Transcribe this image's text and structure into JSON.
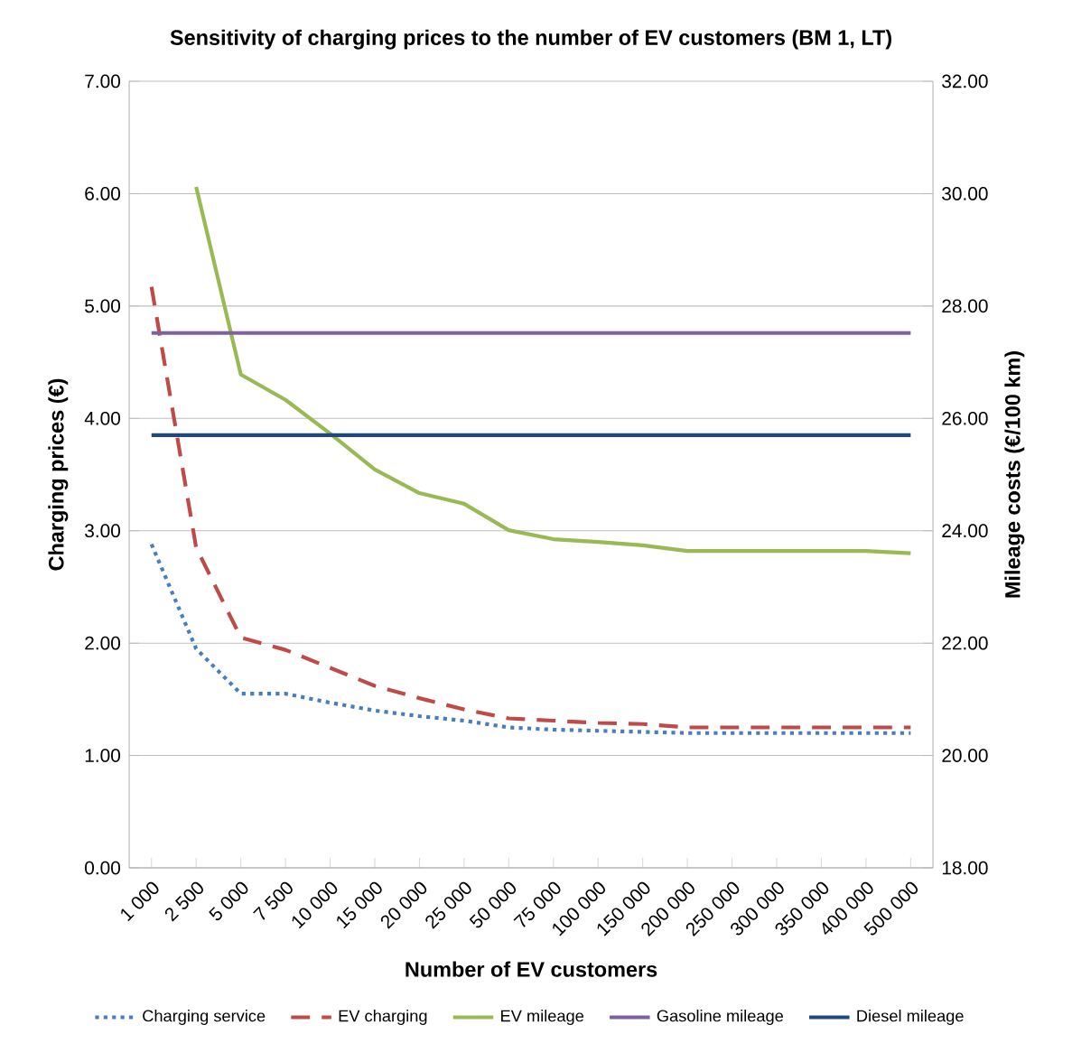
{
  "chart_data": {
    "type": "line",
    "title": "Sensitivity of charging prices to the number of EV customers (BM 1, LT)",
    "xlabel": "Number of EV customers",
    "ylabel": "Charging prices (€)",
    "y2label": "Mileage costs (€/100 km)",
    "categories": [
      "1 000",
      "2 500",
      "5 000",
      "7 500",
      "10 000",
      "15 000",
      "20 000",
      "25 000",
      "50 000",
      "75 000",
      "100 000",
      "150 000",
      "200 000",
      "250 000",
      "300 000",
      "350 000",
      "400 000",
      "500 000"
    ],
    "ylim": [
      0,
      7
    ],
    "yticks": [
      {
        "value": 0,
        "label": "0.00"
      },
      {
        "value": 1,
        "label": "1.00"
      },
      {
        "value": 2,
        "label": "2.00"
      },
      {
        "value": 3,
        "label": "3.00"
      },
      {
        "value": 4,
        "label": "4.00"
      },
      {
        "value": 5,
        "label": "5.00"
      },
      {
        "value": 6,
        "label": "6.00"
      },
      {
        "value": 7,
        "label": "7.00"
      }
    ],
    "y2lim": [
      18,
      32
    ],
    "y2ticks": [
      {
        "value": 18,
        "label": "18.00"
      },
      {
        "value": 20,
        "label": "20.00"
      },
      {
        "value": 22,
        "label": "22.00"
      },
      {
        "value": 24,
        "label": "24.00"
      },
      {
        "value": 26,
        "label": "26.00"
      },
      {
        "value": 28,
        "label": "28.00"
      },
      {
        "value": 30,
        "label": "30.00"
      },
      {
        "value": 32,
        "label": "32.00"
      }
    ],
    "grid": "y",
    "legend": "bottom",
    "series": [
      {
        "name": "Charging service",
        "color": "#4a7ebb",
        "line_style": "dotted",
        "values": [
          2.88,
          1.95,
          1.55,
          1.55,
          1.47,
          1.4,
          1.35,
          1.31,
          1.25,
          1.23,
          1.22,
          1.21,
          1.2,
          1.2,
          1.2,
          1.2,
          1.2,
          1.2
        ]
      },
      {
        "name": "EV charging",
        "color": "#be4b48",
        "line_style": "dashed",
        "values": [
          5.17,
          2.85,
          2.05,
          1.94,
          1.78,
          1.62,
          1.51,
          1.41,
          1.33,
          1.31,
          1.29,
          1.28,
          1.25,
          1.25,
          1.25,
          1.25,
          1.25,
          1.25
        ]
      },
      {
        "name": "EV mileage",
        "color": "#98b954",
        "line_style": "solid",
        "axis": "y2",
        "values": [
          null,
          30.12,
          26.78,
          26.33,
          25.73,
          25.09,
          24.67,
          24.48,
          24.01,
          23.85,
          23.8,
          23.74,
          23.64,
          23.64,
          23.64,
          23.64,
          23.64,
          23.6
        ]
      },
      {
        "name": "Gasoline mileage",
        "color": "#7d60a0",
        "line_style": "solid",
        "axis": "y2",
        "values": [
          27.52,
          27.52,
          27.52,
          27.52,
          27.52,
          27.52,
          27.52,
          27.52,
          27.52,
          27.52,
          27.52,
          27.52,
          27.52,
          27.52,
          27.52,
          27.52,
          27.52,
          27.52
        ]
      },
      {
        "name": "Diesel mileage",
        "color": "#1f497d",
        "line_style": "solid",
        "axis": "y2",
        "values": [
          25.7,
          25.7,
          25.7,
          25.7,
          25.7,
          25.7,
          25.7,
          25.7,
          25.7,
          25.7,
          25.7,
          25.7,
          25.7,
          25.7,
          25.7,
          25.7,
          25.7,
          25.7
        ]
      }
    ]
  }
}
